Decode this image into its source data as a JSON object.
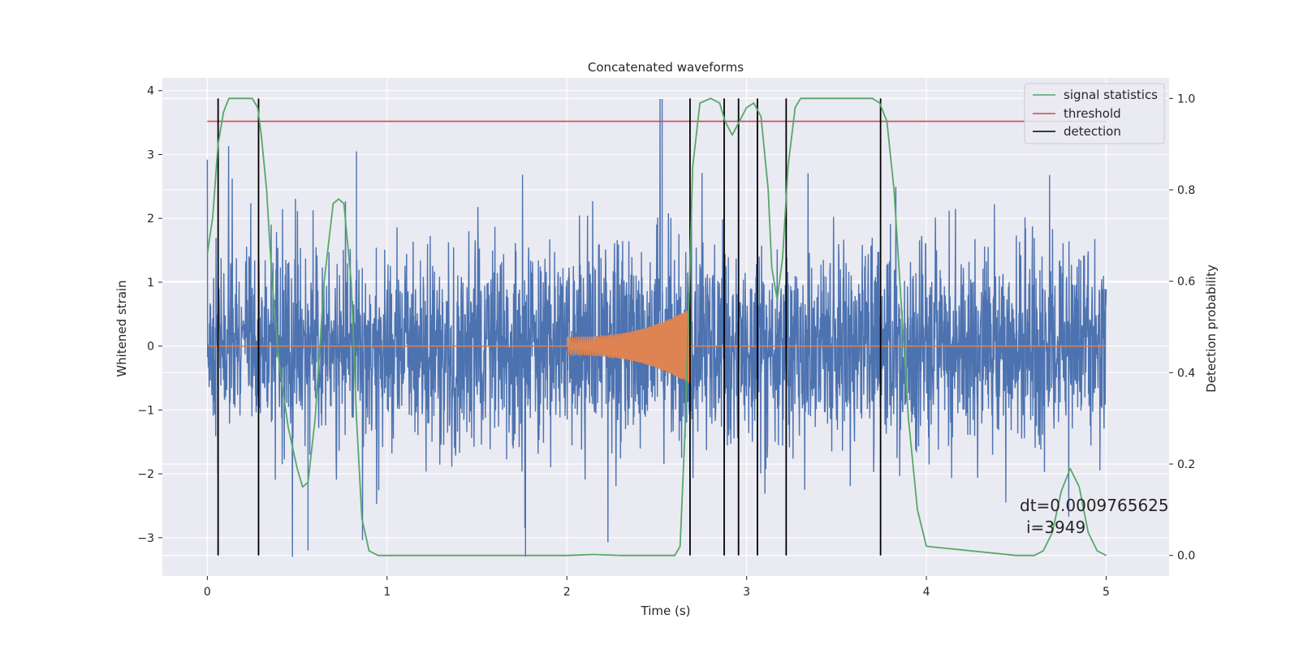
{
  "chart_data": {
    "type": "line",
    "title": "Concatenated waveforms",
    "xlabel": "Time (s)",
    "ylabel": "Whitened strain",
    "y2label": "Detection probability",
    "xlim": [
      -0.25,
      5.35
    ],
    "ylim": [
      -3.6,
      4.2
    ],
    "y2lim": [
      -0.045,
      1.045
    ],
    "xticks": [
      0,
      1,
      2,
      3,
      4,
      5
    ],
    "yticks": [
      -3,
      -2,
      -1,
      0,
      1,
      2,
      3,
      4
    ],
    "y2ticks": [
      0.0,
      0.2,
      0.4,
      0.6,
      0.8,
      1.0
    ],
    "xtick_labels": [
      "0",
      "1",
      "2",
      "3",
      "4",
      "5"
    ],
    "ytick_labels": [
      "−3",
      "−2",
      "−1",
      "0",
      "1",
      "2",
      "3",
      "4"
    ],
    "y2tick_labels": [
      "0.0",
      "0.2",
      "0.4",
      "0.6",
      "0.8",
      "1.0"
    ],
    "grid": true,
    "legend_position": "top-right",
    "series": [
      {
        "name": "signal statistics",
        "axis": "right",
        "color": "#55a868",
        "x": [
          0.0,
          0.03,
          0.06,
          0.09,
          0.12,
          0.15,
          0.2,
          0.25,
          0.28,
          0.3,
          0.33,
          0.36,
          0.4,
          0.45,
          0.5,
          0.53,
          0.56,
          0.6,
          0.65,
          0.7,
          0.73,
          0.76,
          0.8,
          0.83,
          0.86,
          0.9,
          0.95,
          1.0,
          1.5,
          2.0,
          2.15,
          2.3,
          2.5,
          2.6,
          2.63,
          2.66,
          2.7,
          2.74,
          2.8,
          2.85,
          2.88,
          2.92,
          2.96,
          3.0,
          3.04,
          3.08,
          3.12,
          3.14,
          3.17,
          3.2,
          3.23,
          3.27,
          3.3,
          3.4,
          3.5,
          3.6,
          3.7,
          3.74,
          3.78,
          3.82,
          3.86,
          3.9,
          3.95,
          4.0,
          4.5,
          4.6,
          4.65,
          4.7,
          4.75,
          4.8,
          4.85,
          4.9,
          4.95,
          5.0
        ],
        "y": [
          0.66,
          0.74,
          0.9,
          0.97,
          1.0,
          1.0,
          1.0,
          1.0,
          0.98,
          0.92,
          0.8,
          0.6,
          0.42,
          0.28,
          0.19,
          0.15,
          0.16,
          0.3,
          0.6,
          0.77,
          0.78,
          0.77,
          0.6,
          0.3,
          0.08,
          0.01,
          0.0,
          0.0,
          0.0,
          0.0,
          0.002,
          0.0,
          0.0,
          0.0,
          0.02,
          0.3,
          0.85,
          0.99,
          1.0,
          0.99,
          0.95,
          0.92,
          0.95,
          0.98,
          0.99,
          0.96,
          0.8,
          0.63,
          0.56,
          0.65,
          0.85,
          0.98,
          1.0,
          1.0,
          1.0,
          1.0,
          1.0,
          0.99,
          0.95,
          0.8,
          0.55,
          0.3,
          0.1,
          0.02,
          0.0,
          0.0,
          0.01,
          0.05,
          0.14,
          0.19,
          0.15,
          0.05,
          0.01,
          0.0
        ]
      },
      {
        "name": "threshold",
        "axis": "right",
        "color": "#c44e52",
        "x": [
          0.0,
          5.0
        ],
        "y": [
          0.95,
          0.95
        ]
      },
      {
        "name": "detection",
        "axis": "right",
        "color": "#000000",
        "x": [
          0.06,
          0.285,
          2.685,
          2.875,
          2.955,
          3.06,
          3.22,
          3.745
        ],
        "y_range": [
          0.0,
          1.0
        ]
      },
      {
        "axis": "left",
        "color": "#4c72b0",
        "x_range": [
          0.0,
          5.0
        ],
        "typical_range": [
          -1.6,
          1.6
        ],
        "extremes": [
          -3.3,
          3.87
        ]
      },
      {
        "axis": "left",
        "color": "#dd8452",
        "x_range": [
          2.0,
          2.69
        ],
        "amplitude_start": 0.14,
        "amplitude_end": 0.6
      }
    ],
    "annotations": [
      "dt=0.0009765625",
      "i=3949"
    ]
  }
}
